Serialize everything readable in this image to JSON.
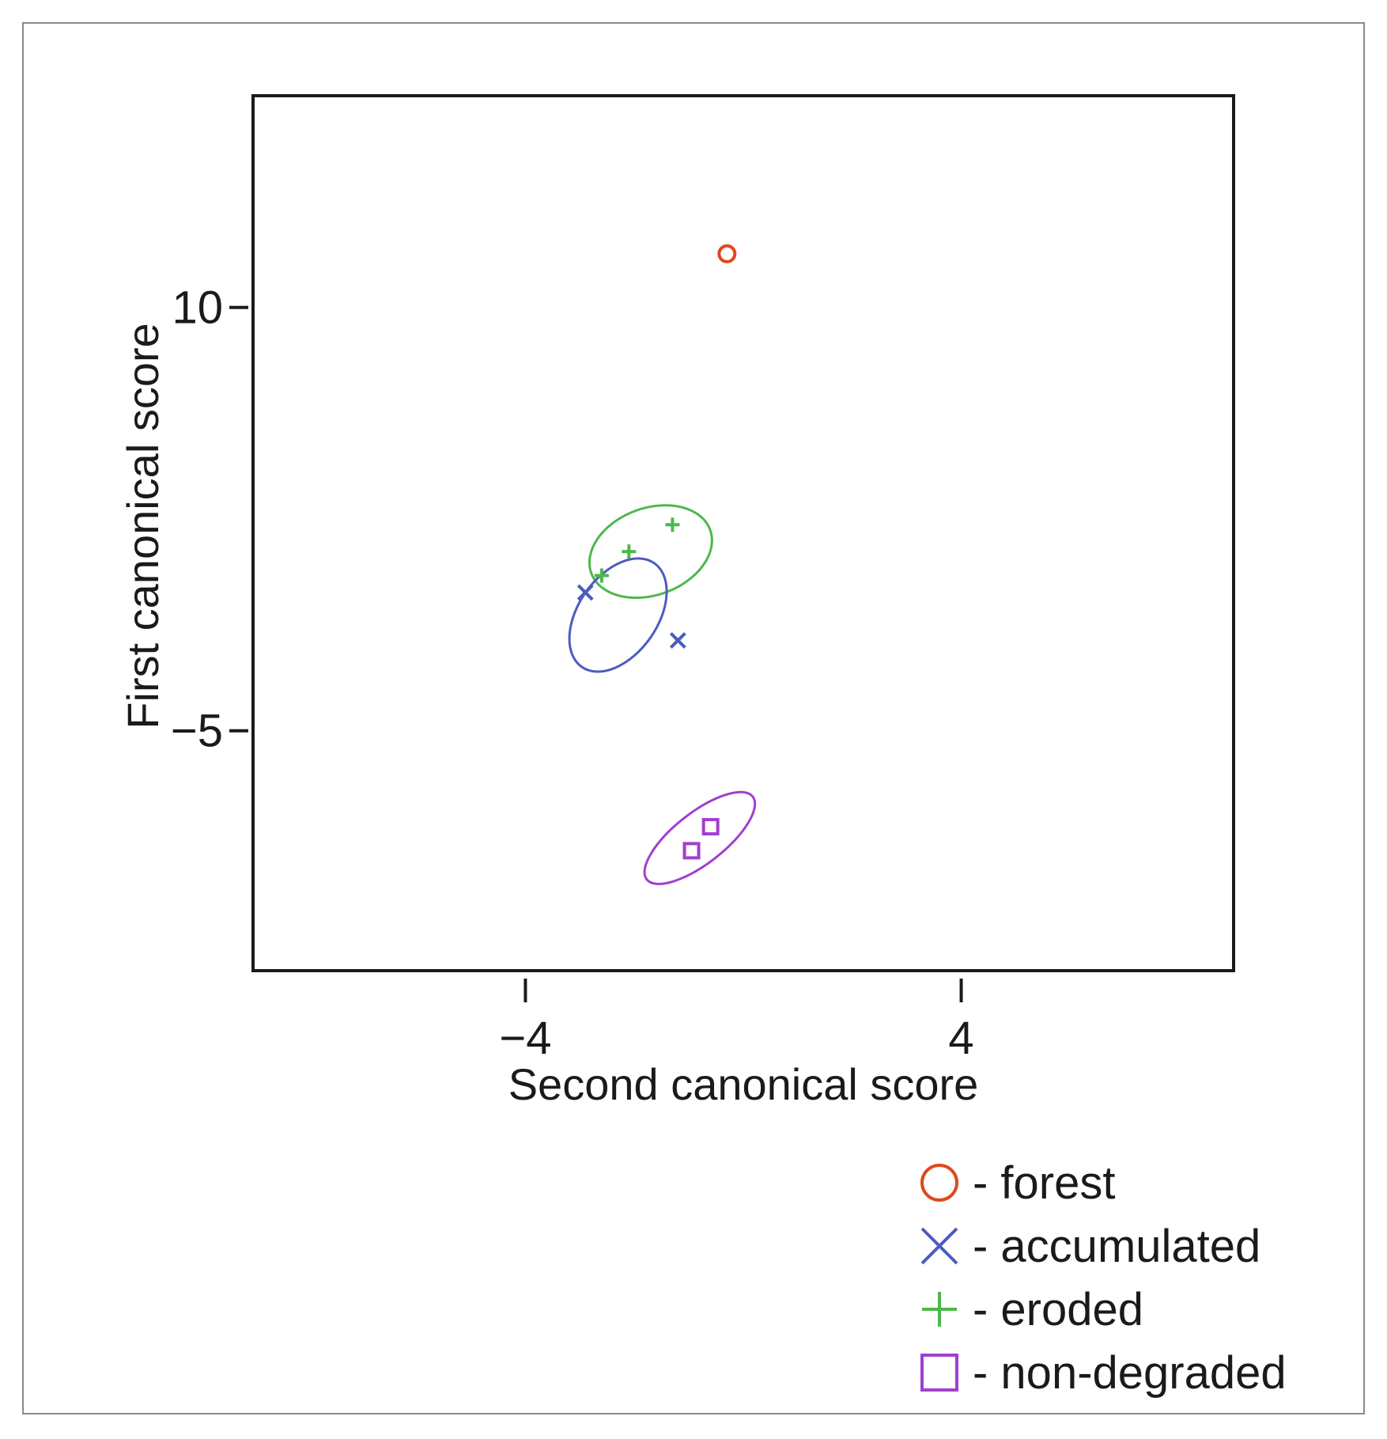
{
  "chart_data": {
    "type": "scatter",
    "title": "",
    "xlabel": "Second canonical score",
    "ylabel": "First canonical score",
    "xlim": [
      -9,
      9
    ],
    "ylim": [
      -13.5,
      17.5
    ],
    "grid": false,
    "legend_position": "bottom-right, below plot",
    "x_ticks": [
      -4,
      4
    ],
    "x_tick_labels": [
      "−4",
      "4"
    ],
    "y_ticks": [
      10,
      -5
    ],
    "y_tick_labels": [
      "10",
      "−5"
    ],
    "series": [
      {
        "name": "forest",
        "marker": "circle",
        "color": "#e0481b",
        "points": [
          [
            -0.3,
            11.9
          ]
        ]
      },
      {
        "name": "accumulated",
        "marker": "x",
        "color": "#4b5bbf",
        "points": [
          [
            -2.9,
            -0.1
          ],
          [
            -1.2,
            -1.8
          ]
        ]
      },
      {
        "name": "eroded",
        "marker": "plus",
        "color": "#4db84a",
        "points": [
          [
            -1.3,
            2.3
          ],
          [
            -2.1,
            1.35
          ],
          [
            -2.6,
            0.5
          ]
        ]
      },
      {
        "name": "non-degraded",
        "marker": "square",
        "color": "#a23ecf",
        "points": [
          [
            -0.6,
            -8.4
          ],
          [
            -0.95,
            -9.25
          ]
        ]
      }
    ],
    "ellipses": [
      {
        "series": "eroded",
        "cx": -1.7,
        "cy": 1.35,
        "rx": 1.15,
        "ry": 1.45,
        "color": "#4db84a"
      },
      {
        "series": "accumulated",
        "cx": -2.3,
        "cy": -0.9,
        "rx": 1.1,
        "ry": 1.5,
        "color": "#4b5bbf"
      },
      {
        "series": "non-degraded",
        "cx": -0.8,
        "cy": -8.8,
        "rx": 1.5,
        "ry": 0.5,
        "color": "#a23ecf"
      }
    ],
    "legend": [
      {
        "marker": "circle",
        "color": "#e0481b",
        "label": "- forest"
      },
      {
        "marker": "x",
        "color": "#4b5bbf",
        "label": "- accumulated"
      },
      {
        "marker": "plus",
        "color": "#4db84a",
        "label": "- eroded"
      },
      {
        "marker": "square",
        "color": "#a23ecf",
        "label": "- non-degraded"
      }
    ]
  }
}
